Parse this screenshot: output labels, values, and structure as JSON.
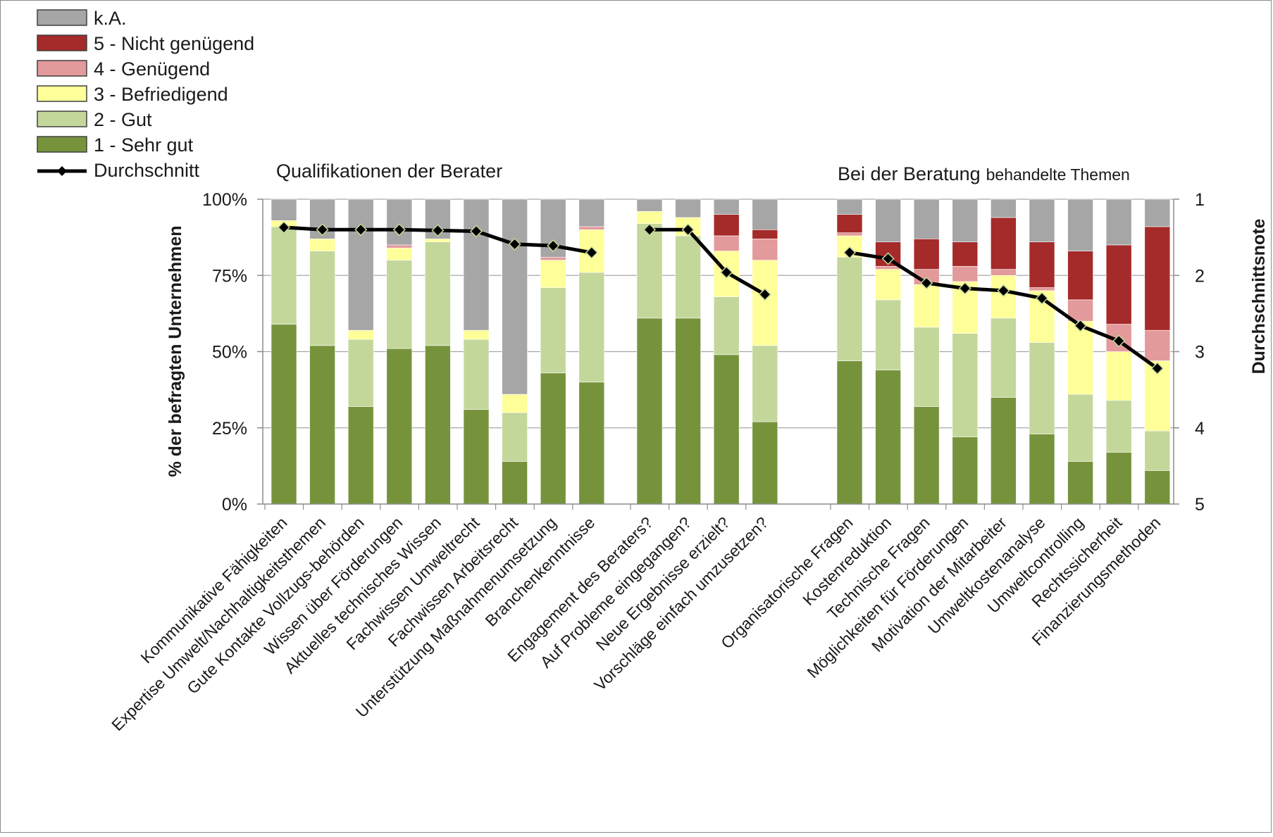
{
  "chart_data": {
    "type": "bar",
    "stacked": true,
    "title": "",
    "group_titles": [
      "Qualifikationen der Berater",
      "Bei der Beratung behandelte Themen"
    ],
    "group_title_words": [
      [
        "Qualifikationen der Berater"
      ],
      [
        "Bei der Beratung",
        "behandelte Themen"
      ]
    ],
    "ylabel": "% der befragten Unternehmen",
    "y2label": "Durchschnittsnote",
    "ylim": [
      0,
      100
    ],
    "y_ticks": [
      "0%",
      "25%",
      "50%",
      "75%",
      "100%"
    ],
    "y2lim": [
      1,
      5
    ],
    "y2_ticks": [
      "1",
      "2",
      "3",
      "4",
      "5"
    ],
    "grid": true,
    "legend_position": "top-left",
    "groups": [
      {
        "categories": [
          "Kommunikative Fähigkeiten",
          "Expertise Umwelt/Nachhaltigkeitsthemen",
          "Gute Kontakte Vollzugs-behörden",
          "Wissen über Förderungen",
          "Aktuelles technisches Wissen",
          "Fachwissen Umweltrecht",
          "Fachwissen Arbeitsrecht",
          "Unterstützung Maßnahmenumsetzung",
          "Branchenkenntnisse"
        ],
        "series_values": {
          "1": [
            59,
            52,
            32,
            51,
            52,
            31,
            14,
            43,
            40
          ],
          "2": [
            32,
            31,
            22,
            29,
            34,
            23,
            16,
            28,
            36
          ],
          "3": [
            2,
            4,
            3,
            4,
            1,
            3,
            6,
            9,
            14
          ],
          "4": [
            0,
            0,
            0,
            1,
            0,
            0,
            0,
            1,
            1
          ],
          "5": [
            0,
            0,
            0,
            0,
            0,
            0,
            0,
            0,
            0
          ],
          "ka": [
            7,
            13,
            43,
            15,
            13,
            43,
            64,
            19,
            9
          ]
        },
        "average": [
          1.37,
          1.4,
          1.4,
          1.4,
          1.41,
          1.42,
          1.59,
          1.61,
          1.7
        ]
      },
      {
        "categories": [
          "Engagement des Beraters?",
          "Auf Probleme eingegangen?",
          "Neue Ergebnisse erzielt?",
          "Vorschläge einfach umzusetzen?"
        ],
        "series_values": {
          "1": [
            61,
            61,
            49,
            27
          ],
          "2": [
            31,
            27,
            19,
            25
          ],
          "3": [
            4,
            6,
            15,
            28
          ],
          "4": [
            0,
            0,
            5,
            7
          ],
          "5": [
            0,
            0,
            7,
            3
          ],
          "ka": [
            4,
            6,
            5,
            10
          ]
        },
        "average": [
          1.4,
          1.4,
          1.96,
          2.25
        ]
      },
      {
        "categories": [
          "Organisatorische Fragen",
          "Kostenreduktion",
          "Technische Fragen",
          "Möglichkeiten für Förderungen",
          "Motivation der Mitarbeiter",
          "Umweltkostenanalyse",
          "Umweltcontrolling",
          "Rechtssicherheit",
          "Finanzierungsmethoden"
        ],
        "series_values": {
          "1": [
            47,
            44,
            32,
            22,
            35,
            23,
            14,
            17,
            11
          ],
          "2": [
            34,
            23,
            26,
            34,
            26,
            30,
            22,
            17,
            13
          ],
          "3": [
            7,
            10,
            14,
            17,
            14,
            17,
            24,
            16,
            23
          ],
          "4": [
            1,
            1,
            5,
            5,
            2,
            1,
            7,
            9,
            10
          ],
          "5": [
            6,
            8,
            10,
            8,
            17,
            15,
            16,
            26,
            34
          ],
          "ka": [
            5,
            14,
            13,
            14,
            6,
            14,
            17,
            15,
            9
          ]
        },
        "average": [
          1.7,
          1.78,
          2.1,
          2.17,
          2.2,
          2.3,
          2.66,
          2.86,
          3.22
        ]
      }
    ],
    "series": [
      {
        "key": "ka",
        "name": "k.A.",
        "color": "#a6a6a6"
      },
      {
        "key": "5",
        "name": "5 - Nicht genügend",
        "color": "#a52a2a"
      },
      {
        "key": "4",
        "name": "4 - Genügend",
        "color": "#e39a9a"
      },
      {
        "key": "3",
        "name": "3 - Befriedigend",
        "color": "#ffff99"
      },
      {
        "key": "2",
        "name": "2 - Gut",
        "color": "#c4d79b"
      },
      {
        "key": "1",
        "name": "1 - Sehr gut",
        "color": "#76933c"
      }
    ],
    "line_series": {
      "name": "Durchschnitt",
      "color": "#000000",
      "marker": "diamond"
    }
  }
}
